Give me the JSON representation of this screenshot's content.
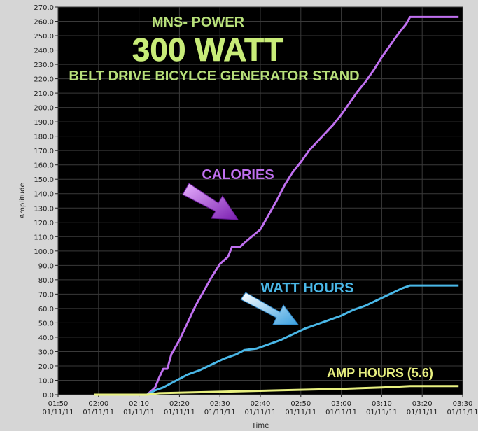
{
  "chart_data": {
    "type": "line",
    "title_lines": [
      "MNS- POWER",
      "300 WATT",
      "BELT DRIVE BICYLCE GENERATOR STAND"
    ],
    "xlabel": "Time",
    "ylabel": "Amplitude",
    "ylim": [
      0,
      270
    ],
    "yticks": [
      0,
      10,
      20,
      30,
      40,
      50,
      60,
      70,
      80,
      90,
      100,
      110,
      120,
      130,
      140,
      150,
      160,
      170,
      180,
      190,
      200,
      210,
      220,
      230,
      240,
      250,
      260,
      270
    ],
    "ytick_labels": [
      "0.0",
      "10.0",
      "20.0",
      "30.0",
      "40.0",
      "50.0",
      "60.0",
      "70.0",
      "80.0",
      "90.0",
      "100.0",
      "110.0",
      "120.0",
      "130.0",
      "140.0",
      "150.0",
      "160.0",
      "170.0",
      "180.0",
      "190.0",
      "200.0",
      "210.0",
      "220.0",
      "230.0",
      "240.0",
      "250.0",
      "260.0",
      "270.0"
    ],
    "xlim": [
      "01:50",
      "03:30"
    ],
    "xticks": [
      {
        "time": "01:50",
        "date": "01/11/11"
      },
      {
        "time": "02:00",
        "date": "01/11/11"
      },
      {
        "time": "02:10",
        "date": "01/11/11"
      },
      {
        "time": "02:20",
        "date": "01/11/11"
      },
      {
        "time": "02:30",
        "date": "01/11/11"
      },
      {
        "time": "02:40",
        "date": "01/11/11"
      },
      {
        "time": "02:50",
        "date": "01/11/11"
      },
      {
        "time": "03:00",
        "date": "01/11/11"
      },
      {
        "time": "03:10",
        "date": "01/11/11"
      },
      {
        "time": "03:20",
        "date": "01/11/11"
      },
      {
        "time": "03:30",
        "date": "01/11/11"
      }
    ],
    "grid": true,
    "background": "#000000",
    "series": [
      {
        "name": "CALORIES",
        "color": "#c070f0",
        "points": [
          [
            "01:59",
            0
          ],
          [
            "02:12",
            0
          ],
          [
            "02:14",
            5
          ],
          [
            "02:15",
            12
          ],
          [
            "02:16",
            18
          ],
          [
            "02:17",
            18
          ],
          [
            "02:18",
            28
          ],
          [
            "02:20",
            38
          ],
          [
            "02:22",
            50
          ],
          [
            "02:24",
            62
          ],
          [
            "02:26",
            72
          ],
          [
            "02:28",
            82
          ],
          [
            "02:30",
            91
          ],
          [
            "02:32",
            96
          ],
          [
            "02:33",
            103
          ],
          [
            "02:35",
            103
          ],
          [
            "02:37",
            108
          ],
          [
            "02:40",
            115
          ],
          [
            "02:42",
            125
          ],
          [
            "02:44",
            135
          ],
          [
            "02:46",
            146
          ],
          [
            "02:48",
            155
          ],
          [
            "02:50",
            162
          ],
          [
            "02:52",
            170
          ],
          [
            "02:54",
            176
          ],
          [
            "02:56",
            182
          ],
          [
            "02:58",
            188
          ],
          [
            "03:00",
            195
          ],
          [
            "03:02",
            203
          ],
          [
            "03:04",
            211
          ],
          [
            "03:06",
            218
          ],
          [
            "03:08",
            226
          ],
          [
            "03:10",
            235
          ],
          [
            "03:12",
            243
          ],
          [
            "03:14",
            251
          ],
          [
            "03:16",
            258
          ],
          [
            "03:17",
            263
          ],
          [
            "03:29",
            263
          ]
        ]
      },
      {
        "name": "WATT HOURS",
        "color": "#4ab8e8",
        "points": [
          [
            "01:59",
            0
          ],
          [
            "02:12",
            0
          ],
          [
            "02:14",
            3
          ],
          [
            "02:16",
            5
          ],
          [
            "02:18",
            8
          ],
          [
            "02:20",
            11
          ],
          [
            "02:22",
            14
          ],
          [
            "02:25",
            17
          ],
          [
            "02:28",
            21
          ],
          [
            "02:31",
            25
          ],
          [
            "02:34",
            28
          ],
          [
            "02:36",
            31
          ],
          [
            "02:39",
            32
          ],
          [
            "02:42",
            35
          ],
          [
            "02:45",
            38
          ],
          [
            "02:48",
            42
          ],
          [
            "02:51",
            46
          ],
          [
            "02:54",
            49
          ],
          [
            "02:57",
            52
          ],
          [
            "03:00",
            55
          ],
          [
            "03:03",
            59
          ],
          [
            "03:06",
            62
          ],
          [
            "03:09",
            66
          ],
          [
            "03:12",
            70
          ],
          [
            "03:15",
            74
          ],
          [
            "03:17",
            76
          ],
          [
            "03:29",
            76
          ]
        ]
      },
      {
        "name": "AMP HOURS (5.6)",
        "color": "#e8f080",
        "points": [
          [
            "01:59",
            0
          ],
          [
            "02:12",
            0
          ],
          [
            "02:15",
            1
          ],
          [
            "02:30",
            2
          ],
          [
            "02:45",
            3
          ],
          [
            "03:00",
            4
          ],
          [
            "03:10",
            5
          ],
          [
            "03:17",
            6
          ],
          [
            "03:29",
            6
          ]
        ]
      }
    ],
    "annotations": [
      {
        "text": "CALORIES",
        "color": "#c070f0"
      },
      {
        "text": "WATT HOURS",
        "color": "#4ab8e8"
      },
      {
        "text": "AMP HOURS (5.6)",
        "color": "#e8f080"
      }
    ]
  }
}
